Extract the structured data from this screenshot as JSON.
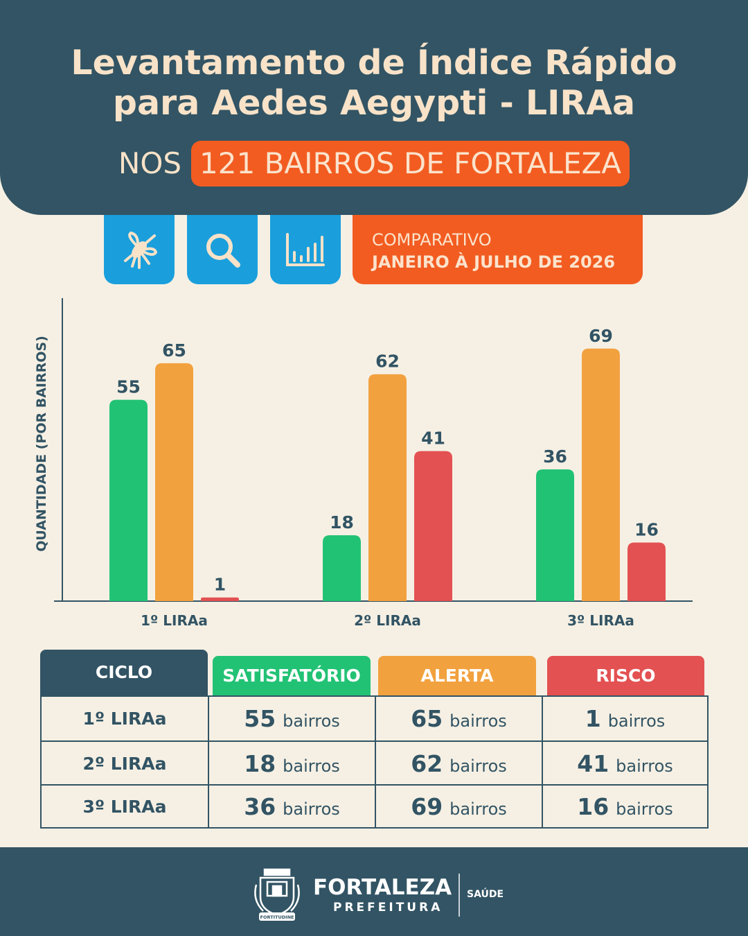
{
  "header": {
    "title_line1": "Levantamento de Índice Rápido",
    "title_line2": "para Aedes Aegypti - LIRAa",
    "subtitle_prefix": "NOS",
    "subtitle_highlight": "121 BAIRROS DE FORTALEZA"
  },
  "icons": [
    "mosquito-icon",
    "magnifier-icon",
    "bar-chart-icon"
  ],
  "period": {
    "line1": "COMPARATIVO",
    "line2": "JANEIRO À JULHO DE 2026"
  },
  "colors": {
    "navy": "#325464",
    "cream": "#f6f0e4",
    "orange_accent": "#f25c21",
    "blue": "#1a9fdc",
    "satisfatorio": "#22c275",
    "alerta": "#f2a13f",
    "risco": "#e35152"
  },
  "chart_data": {
    "type": "bar",
    "ylabel": "QUANTIDADE (POR BAIRROS)",
    "xlabel": "",
    "categories": [
      "1º LIRAa",
      "2º LIRAa",
      "3º LIRAa"
    ],
    "series": [
      {
        "name": "SATISFATÓRIO",
        "values": [
          55,
          18,
          36
        ],
        "color": "#22c275"
      },
      {
        "name": "ALERTA",
        "values": [
          65,
          62,
          69
        ],
        "color": "#f2a13f"
      },
      {
        "name": "RISCO",
        "values": [
          1,
          41,
          16
        ],
        "color": "#e35152"
      }
    ],
    "ylim": [
      0,
      79
    ],
    "grid": false
  },
  "table": {
    "headers": [
      "CICLO",
      "SATISFATÓRIO",
      "ALERTA",
      "RISCO"
    ],
    "unit": "bairros",
    "rows": [
      {
        "ciclo": "1º LIRAa",
        "values": [
          "55",
          "65",
          "1"
        ]
      },
      {
        "ciclo": "2º LIRAa",
        "values": [
          "18",
          "62",
          "41"
        ]
      },
      {
        "ciclo": "3º LIRAa",
        "values": [
          "36",
          "69",
          "16"
        ]
      }
    ]
  },
  "footer": {
    "brand": "FORTALEZA",
    "brand_sub": "PREFEITURA",
    "department": "SAÚDE",
    "crest_motto": "FORTITUDINE"
  }
}
